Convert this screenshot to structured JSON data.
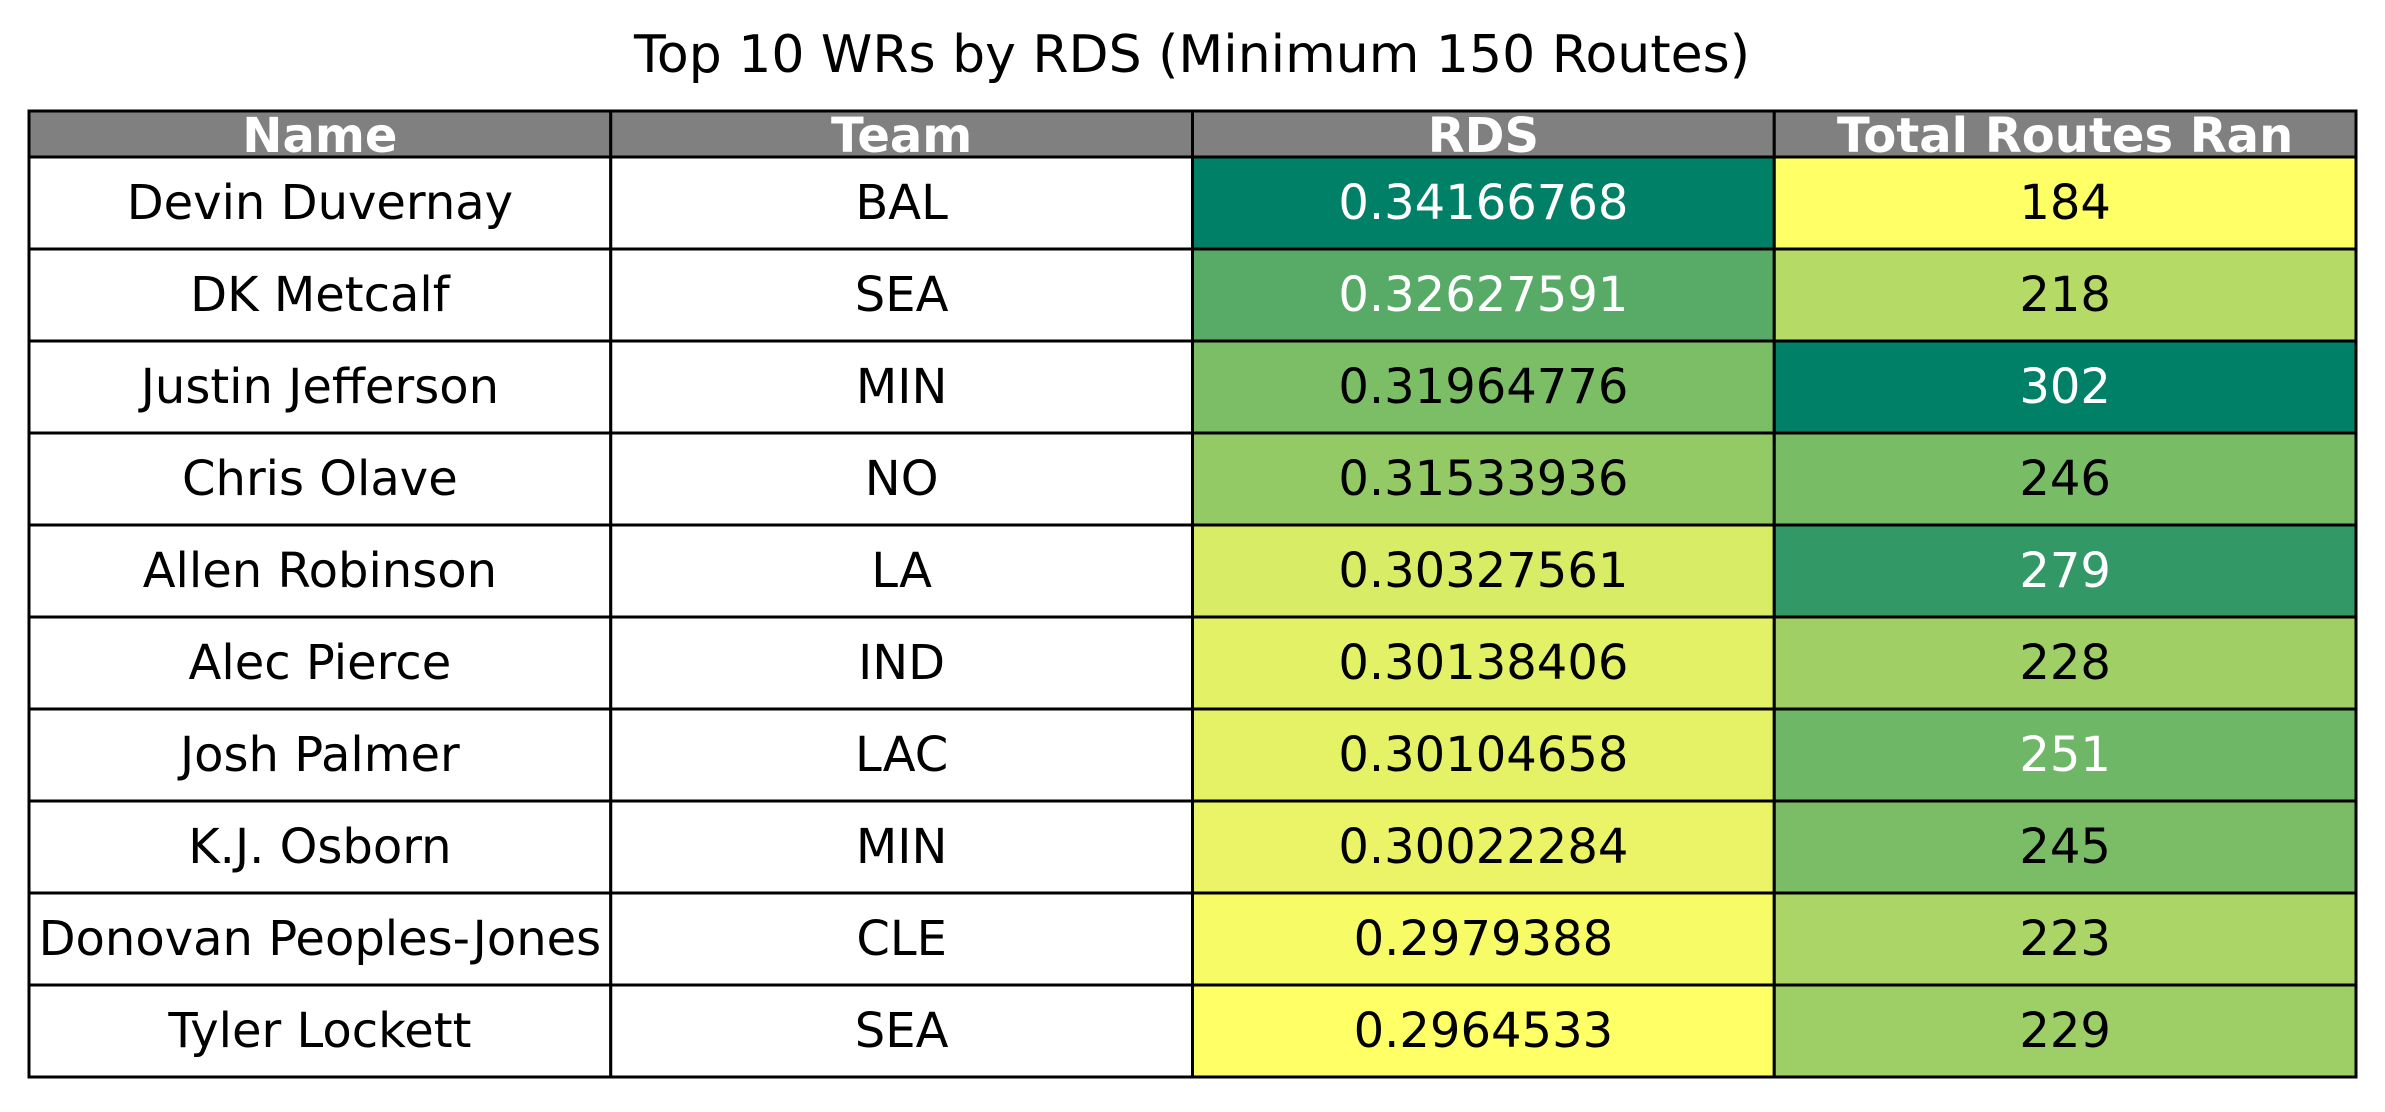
{
  "chart_data": {
    "type": "table",
    "title": "Top 10 WRs by RDS (Minimum 150 Routes)",
    "columns": [
      "Name",
      "Team",
      "RDS",
      "Total Routes Ran"
    ],
    "rows": [
      {
        "name": "Devin Duvernay",
        "team": "BAL",
        "rds": "0.34166768",
        "routes": "184"
      },
      {
        "name": "DK Metcalf",
        "team": "SEA",
        "rds": "0.32627591",
        "routes": "218"
      },
      {
        "name": "Justin Jefferson",
        "team": "MIN",
        "rds": "0.31964776",
        "routes": "302"
      },
      {
        "name": "Chris Olave",
        "team": "NO",
        "rds": "0.31533936",
        "routes": "246"
      },
      {
        "name": "Allen Robinson",
        "team": "LA",
        "rds": "0.30327561",
        "routes": "279"
      },
      {
        "name": "Alec Pierce",
        "team": "IND",
        "rds": "0.30138406",
        "routes": "228"
      },
      {
        "name": "Josh Palmer",
        "team": "LAC",
        "rds": "0.30104658",
        "routes": "251"
      },
      {
        "name": "K.J. Osborn",
        "team": "MIN",
        "rds": "0.30022284",
        "routes": "245"
      },
      {
        "name": "Donovan Peoples-Jones",
        "team": "CLE",
        "rds": "0.2979388",
        "routes": "223"
      },
      {
        "name": "Tyler Lockett",
        "team": "SEA",
        "rds": "0.2964533",
        "routes": "229"
      }
    ],
    "colormap": "summer_r",
    "header_color": "#808080",
    "shaded_columns": [
      "RDS",
      "Total Routes Ran"
    ]
  }
}
